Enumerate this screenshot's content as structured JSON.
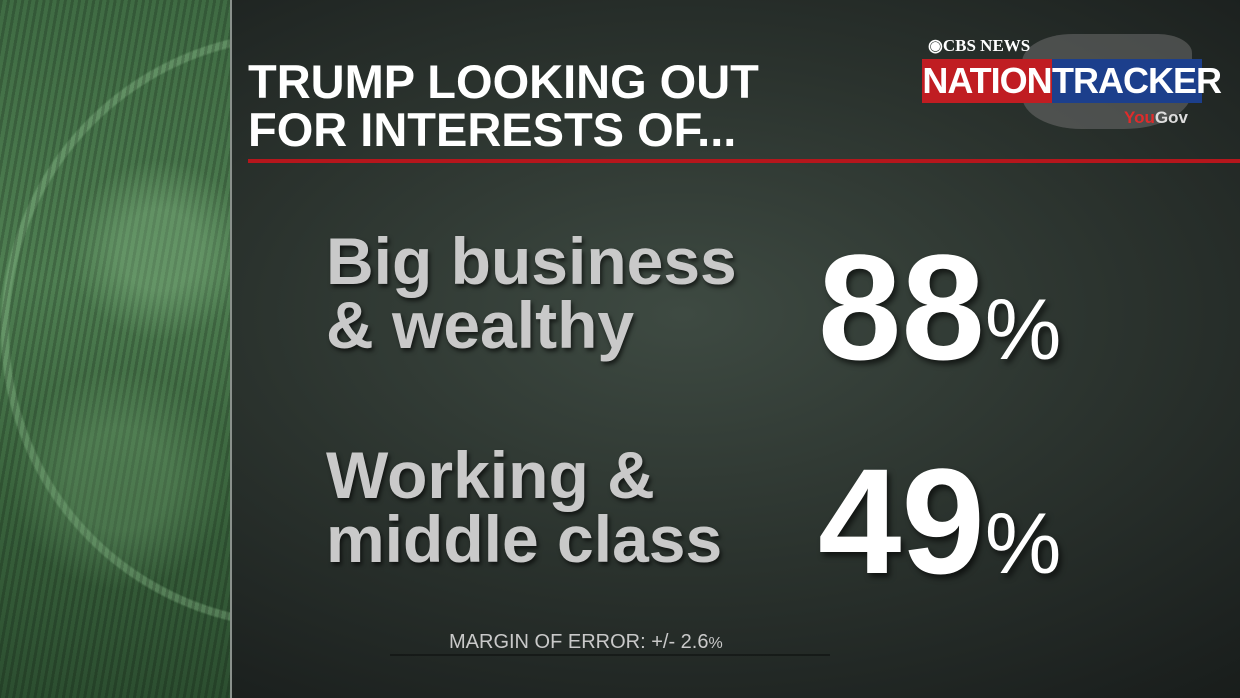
{
  "title": {
    "line1": "TRUMP LOOKING OUT",
    "line2": "FOR INTERESTS OF..."
  },
  "logo": {
    "network": "CBS NEWS",
    "word1": "NATION",
    "word2": "TRACKER",
    "partner_a": "You",
    "partner_b": "Gov",
    "colors": {
      "nation": "#c01d22",
      "tracker": "#1c3f8c",
      "rule": "#b5161c"
    }
  },
  "results": [
    {
      "label_line1": "Big business",
      "label_line2": "& wealthy",
      "value": "88",
      "unit": "%"
    },
    {
      "label_line1": "Working &",
      "label_line2": "middle class",
      "value": "49",
      "unit": "%"
    }
  ],
  "footer": {
    "margin_of_error": "MARGIN OF ERROR: +/-  2.6",
    "unit": "%"
  }
}
